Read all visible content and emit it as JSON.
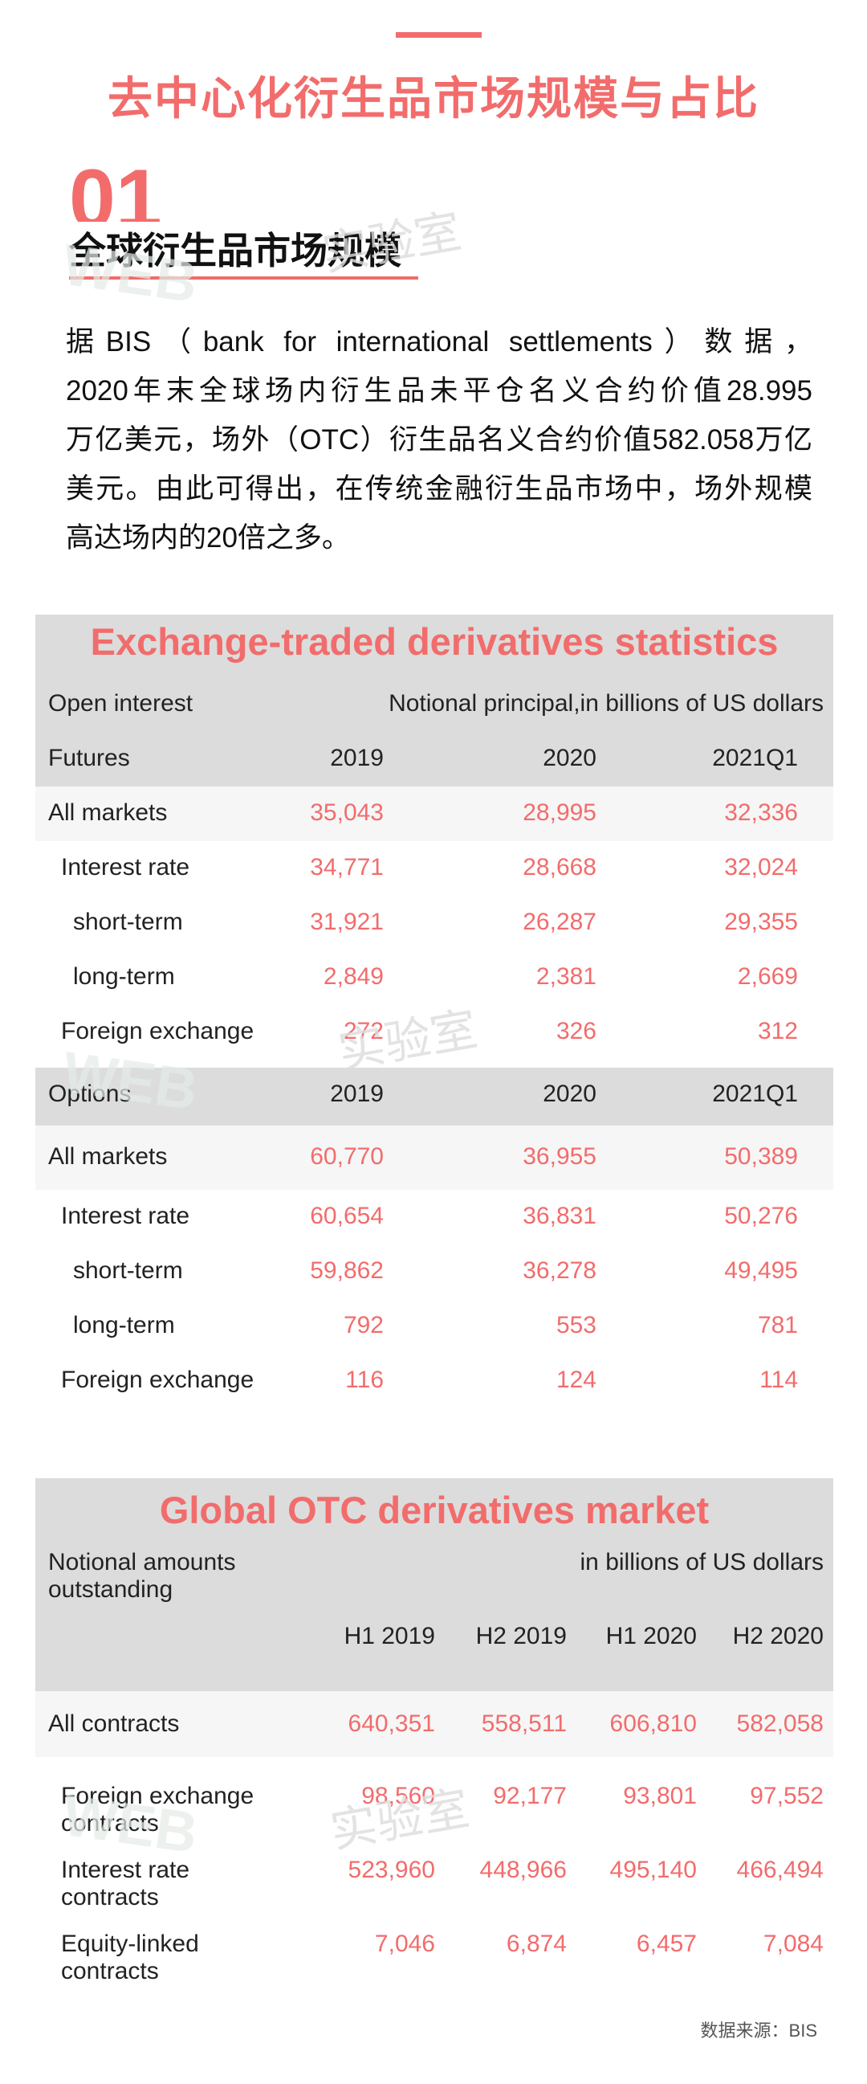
{
  "main_title": "去中心化衍生品市场规模与占比",
  "section": {
    "number": "01",
    "title": "全球衍生品市场规模"
  },
  "intro_lines": [
    "据BIS（bank for international settlements）数据，",
    "2020年末全球场内衍生品未平仓名义合约价值28.995",
    "万亿美元，场外（OTC）衍生品名义合约价值582.058万亿",
    "美元。由此可得出，在传统金融衍生品市场中，场外规模",
    "高达场内的20倍之多。"
  ],
  "watermark": {
    "en": "WEB",
    "cn": "实验室"
  },
  "table1": {
    "title": "Exchange-traded derivatives statistics",
    "open_interest": "Open interest",
    "unit": "Notional principal,in billions of US dollars",
    "futures": {
      "label": "Futures",
      "periods": [
        "2019",
        "2020",
        "2021Q1"
      ],
      "rows": [
        {
          "label": "All markets",
          "values": [
            "35,043",
            "28,995",
            "32,336"
          ]
        },
        {
          "label": "Interest rate",
          "values": [
            "34,771",
            "28,668",
            "32,024"
          ]
        },
        {
          "label": "short-term",
          "values": [
            "31,921",
            "26,287",
            "29,355"
          ]
        },
        {
          "label": "long-term",
          "values": [
            "2,849",
            "2,381",
            "2,669"
          ]
        },
        {
          "label": "Foreign exchange",
          "values": [
            "272",
            "326",
            "312"
          ]
        }
      ]
    },
    "options": {
      "label": "Options",
      "periods": [
        "2019",
        "2020",
        "2021Q1"
      ],
      "rows": [
        {
          "label": "All markets",
          "values": [
            "60,770",
            "36,955",
            "50,389"
          ]
        },
        {
          "label": "Interest rate",
          "values": [
            "60,654",
            "36,831",
            "50,276"
          ]
        },
        {
          "label": "short-term",
          "values": [
            "59,862",
            "36,278",
            "49,495"
          ]
        },
        {
          "label": "long-term",
          "values": [
            "792",
            "553",
            "781"
          ]
        },
        {
          "label": "Foreign exchange",
          "values": [
            "116",
            "124",
            "114"
          ]
        }
      ]
    }
  },
  "table2": {
    "title": "Global OTC derivatives market",
    "label_line1": "Notional amounts",
    "label_line2": "outstanding",
    "unit": "in billions of US dollars",
    "periods": [
      "H1  2019",
      "H2  2019",
      "H1  2020",
      "H2  2020"
    ],
    "rows": [
      {
        "label1": "All contracts",
        "label2": "",
        "values": [
          "640,351",
          "558,511",
          "606,810",
          "582,058"
        ]
      },
      {
        "label1": "Foreign exchange",
        "label2": "contracts",
        "values": [
          "98,560",
          "92,177",
          "93,801",
          "97,552"
        ]
      },
      {
        "label1": "Interest rate",
        "label2": "contracts",
        "values": [
          "523,960",
          "448,966",
          "495,140",
          "466,494"
        ]
      },
      {
        "label1": "Equity-linked",
        "label2": "contracts",
        "values": [
          "7,046",
          "6,874",
          "6,457",
          "7,084"
        ]
      }
    ]
  },
  "source": "数据来源：BIS"
}
